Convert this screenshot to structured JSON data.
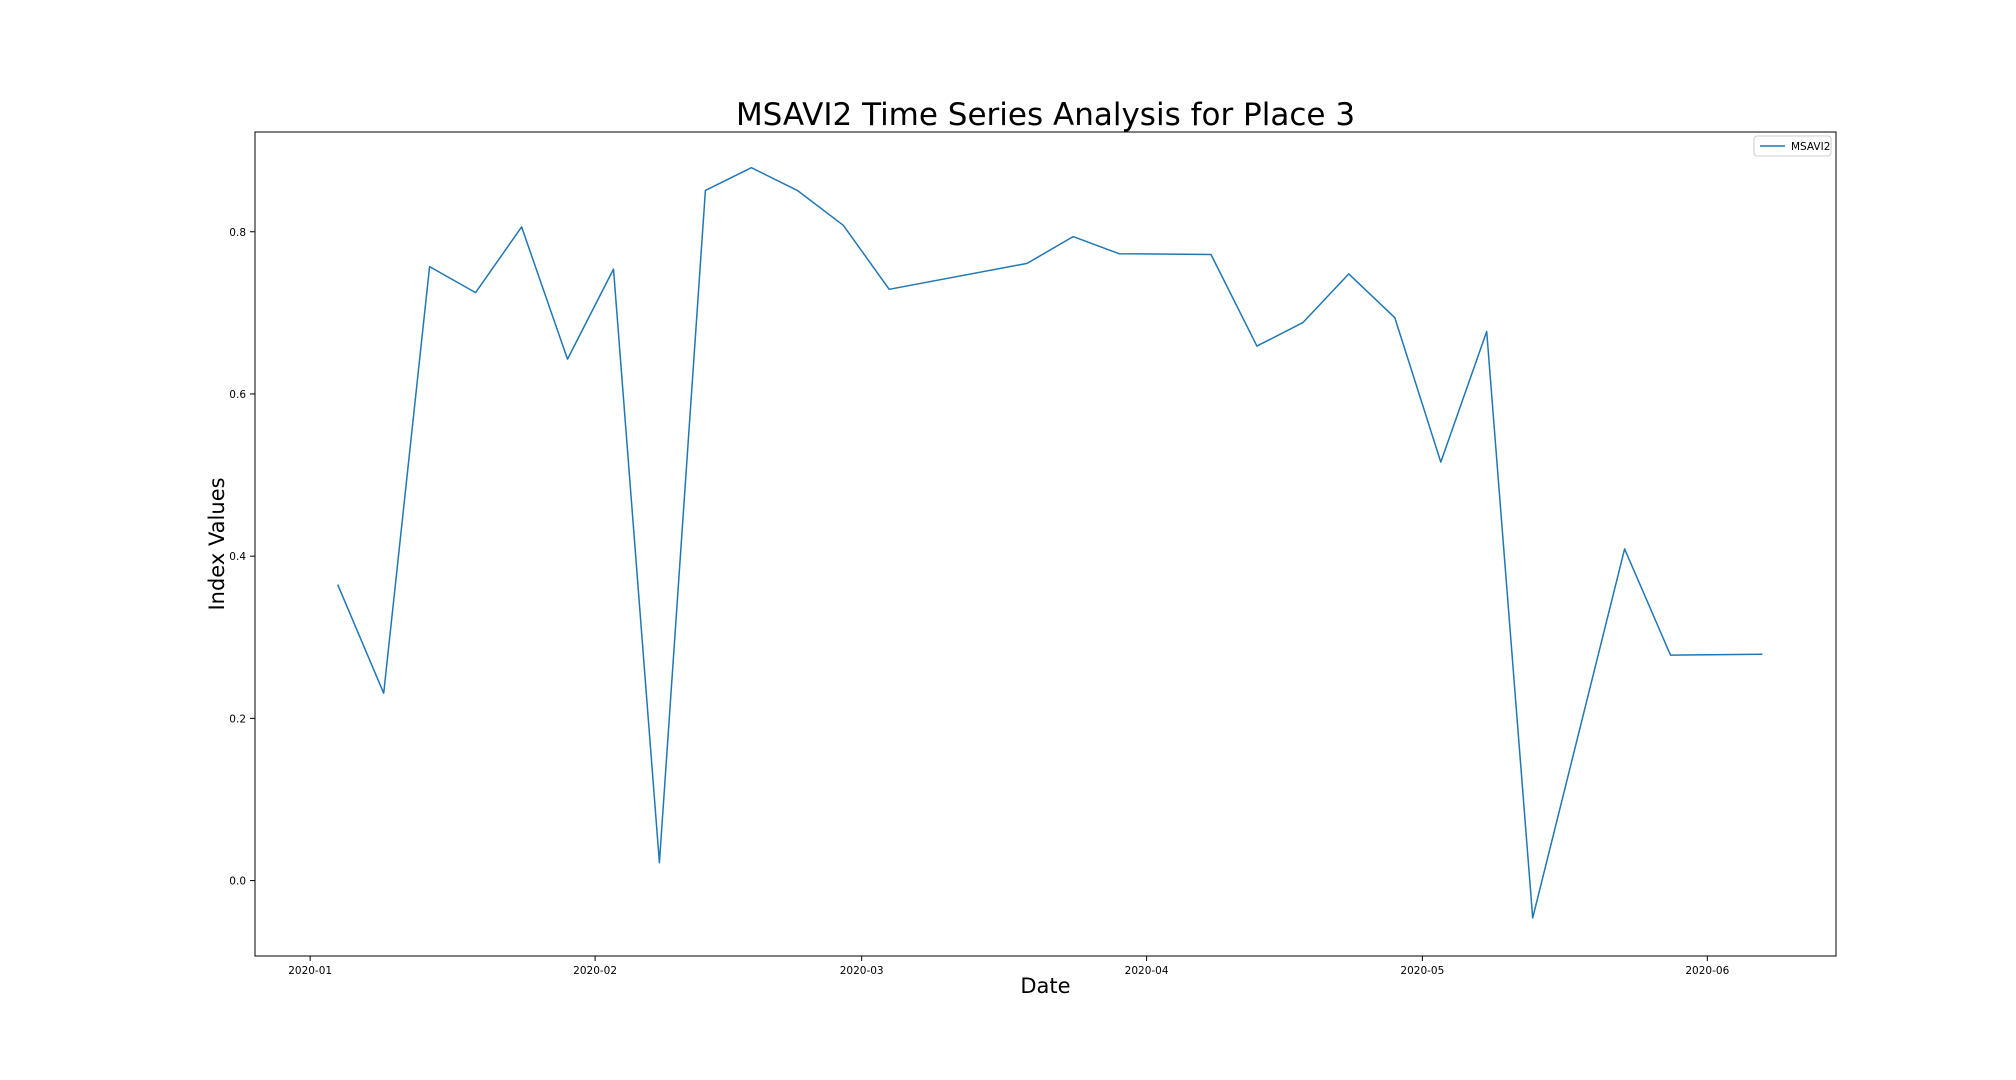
{
  "chart_data": {
    "type": "line",
    "title": "MSAVI2 Time Series Analysis for Place 3",
    "xlabel": "Date",
    "ylabel": "Index Values",
    "xlim": [
      "2019-12-26",
      "2020-06-15"
    ],
    "ylim": [
      -0.093,
      0.923
    ],
    "x_ticks": [
      "2020-01-01",
      "2020-02-01",
      "2020-03-01",
      "2020-04-01",
      "2020-05-01",
      "2020-06-01"
    ],
    "x_tick_labels": [
      "2020-01",
      "2020-02",
      "2020-03",
      "2020-04",
      "2020-05",
      "2020-06"
    ],
    "y_ticks": [
      0.0,
      0.2,
      0.4,
      0.6,
      0.8
    ],
    "y_tick_labels": [
      "0.0",
      "0.2",
      "0.4",
      "0.6",
      "0.8"
    ],
    "grid": false,
    "legend_position": "top-right",
    "series": [
      {
        "name": "MSAVI2",
        "color": "#1f77b4",
        "x": [
          "2020-01-04",
          "2020-01-09",
          "2020-01-14",
          "2020-01-19",
          "2020-01-24",
          "2020-01-29",
          "2020-02-03",
          "2020-02-08",
          "2020-02-13",
          "2020-02-18",
          "2020-02-23",
          "2020-02-28",
          "2020-03-04",
          "2020-03-19",
          "2020-03-24",
          "2020-03-29",
          "2020-04-08",
          "2020-04-13",
          "2020-04-18",
          "2020-04-23",
          "2020-04-28",
          "2020-05-03",
          "2020-05-08",
          "2020-05-13",
          "2020-05-23",
          "2020-05-28",
          "2020-06-07"
        ],
        "values": [
          0.365,
          0.231,
          0.757,
          0.725,
          0.806,
          0.643,
          0.754,
          0.022,
          0.851,
          0.879,
          0.851,
          0.808,
          0.729,
          0.761,
          0.794,
          0.773,
          0.772,
          0.659,
          0.688,
          0.748,
          0.694,
          0.516,
          0.677,
          -0.046,
          0.409,
          0.278,
          0.279
        ]
      }
    ]
  }
}
